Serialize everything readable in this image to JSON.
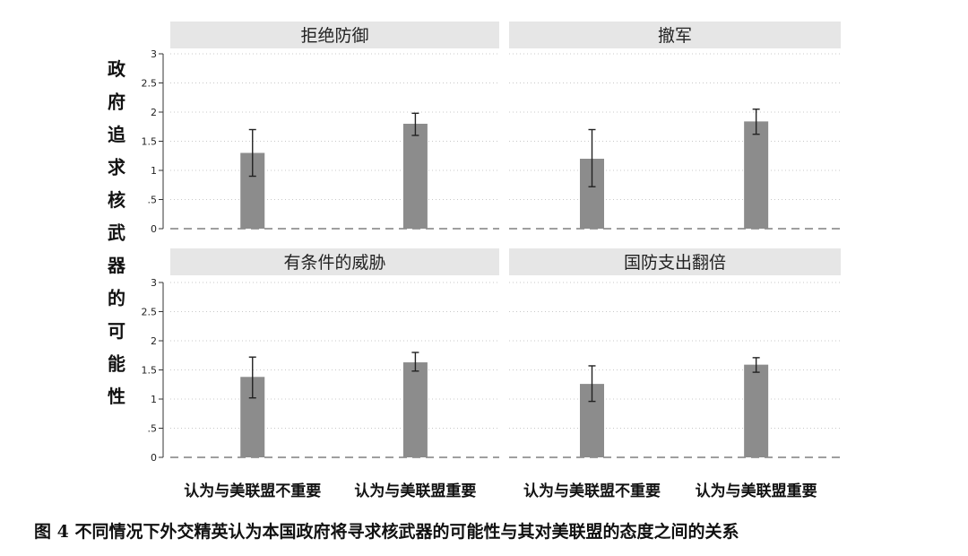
{
  "chart_data": {
    "type": "bar",
    "ylabel": "政府追求核武器的可能性",
    "ylim": [
      0,
      3
    ],
    "yticks": [
      {
        "value": 0,
        "label": "0"
      },
      {
        "value": 0.5,
        "label": ".5"
      },
      {
        "value": 1,
        "label": "1"
      },
      {
        "value": 1.5,
        "label": "1.5"
      },
      {
        "value": 2,
        "label": "2"
      },
      {
        "value": 2.5,
        "label": "2.5"
      },
      {
        "value": 3,
        "label": "3"
      }
    ],
    "categories": [
      "认为与美联盟不重要",
      "认为与美联盟重要"
    ],
    "grid": true,
    "reference_line": 0,
    "bar_color": "#8c8c8c",
    "header_color": "#e6e6e6",
    "panels": [
      {
        "title": "拒绝防御",
        "values": [
          1.3,
          1.8
        ],
        "ci_low": [
          0.9,
          1.6
        ],
        "ci_high": [
          1.7,
          1.98
        ]
      },
      {
        "title": "撤军",
        "values": [
          1.2,
          1.84
        ],
        "ci_low": [
          0.72,
          1.62
        ],
        "ci_high": [
          1.7,
          2.05
        ]
      },
      {
        "title": "有条件的威胁",
        "values": [
          1.38,
          1.63
        ],
        "ci_low": [
          1.02,
          1.48
        ],
        "ci_high": [
          1.72,
          1.8
        ]
      },
      {
        "title": "国防支出翻倍",
        "values": [
          1.26,
          1.59
        ],
        "ci_low": [
          0.96,
          1.46
        ],
        "ci_high": [
          1.57,
          1.71
        ]
      }
    ]
  },
  "caption": "图 4  不同情况下外交精英认为本国政府将寻求核武器的可能性与其对美联盟的态度之间的关系"
}
